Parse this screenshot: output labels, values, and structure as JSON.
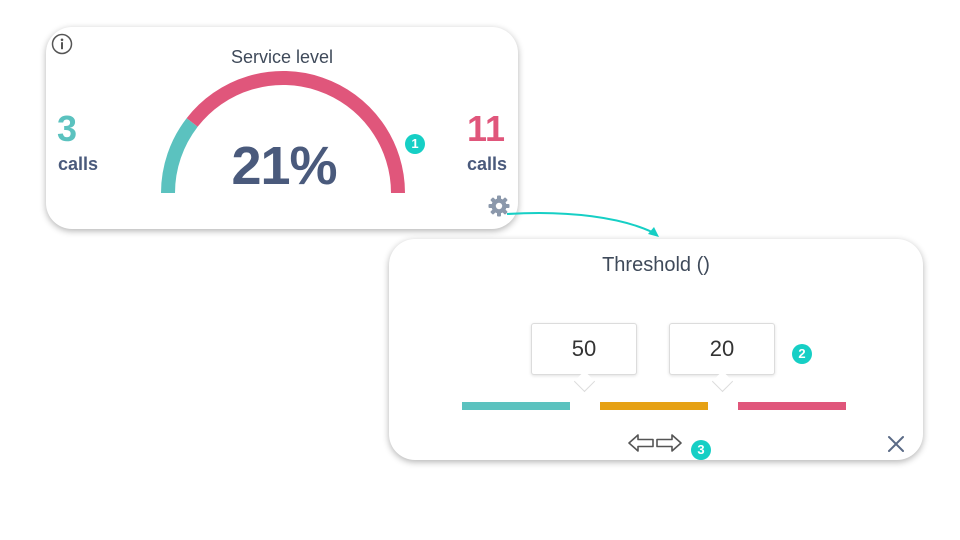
{
  "service_level_card": {
    "title": "Service level",
    "percent_label": "21%",
    "percent_value": 21,
    "left": {
      "count": "3",
      "label": "calls",
      "color": "#5bc2bf"
    },
    "right": {
      "count": "11",
      "label": "calls",
      "color": "#e0567b"
    },
    "icons": {
      "info": "info-icon",
      "settings": "gear-icon"
    }
  },
  "threshold_card": {
    "title": "Threshold ()",
    "inputs": [
      "50",
      "20"
    ],
    "segment_colors": [
      "#5bc2bf",
      "#e6a114",
      "#e0567b"
    ],
    "icons": {
      "swap": "swap-arrows-icon",
      "close": "close-icon"
    }
  },
  "badges": [
    "1",
    "2",
    "3"
  ],
  "colors": {
    "accent": "#16cfc5",
    "text_dark": "#4a5a7c"
  }
}
